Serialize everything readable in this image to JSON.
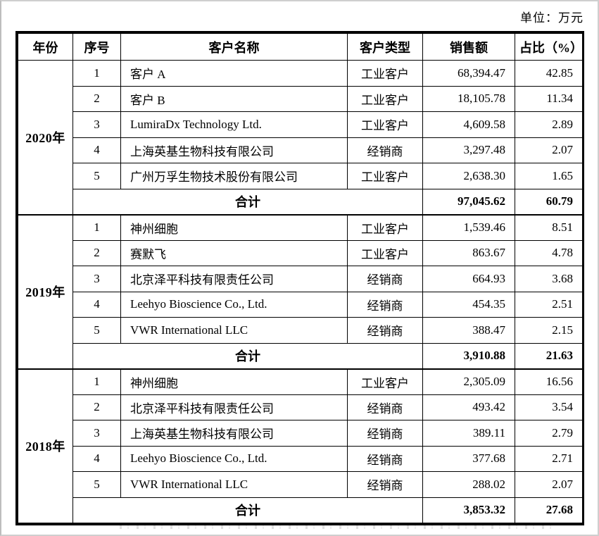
{
  "page": {
    "unit_label": "单位：万元"
  },
  "table": {
    "columns": [
      "年份",
      "序号",
      "客户名称",
      "客户类型",
      "销售额",
      "占比（%）"
    ],
    "total_label": "合计",
    "groups": [
      {
        "year": "2020年",
        "rows": [
          {
            "no": "1",
            "name": "客户 A",
            "type": "工业客户",
            "sales": "68,394.47",
            "pct": "42.85"
          },
          {
            "no": "2",
            "name": "客户 B",
            "type": "工业客户",
            "sales": "18,105.78",
            "pct": "11.34"
          },
          {
            "no": "3",
            "name": "LumiraDx Technology Ltd.",
            "type": "工业客户",
            "sales": "4,609.58",
            "pct": "2.89"
          },
          {
            "no": "4",
            "name": "上海英基生物科技有限公司",
            "type": "经销商",
            "sales": "3,297.48",
            "pct": "2.07"
          },
          {
            "no": "5",
            "name": "广州万孚生物技术股份有限公司",
            "type": "工业客户",
            "sales": "2,638.30",
            "pct": "1.65"
          }
        ],
        "total": {
          "sales": "97,045.62",
          "pct": "60.79"
        }
      },
      {
        "year": "2019年",
        "rows": [
          {
            "no": "1",
            "name": "神州细胞",
            "type": "工业客户",
            "sales": "1,539.46",
            "pct": "8.51"
          },
          {
            "no": "2",
            "name": "赛默飞",
            "type": "工业客户",
            "sales": "863.67",
            "pct": "4.78"
          },
          {
            "no": "3",
            "name": "北京泽平科技有限责任公司",
            "type": "经销商",
            "sales": "664.93",
            "pct": "3.68"
          },
          {
            "no": "4",
            "name": "Leehyo Bioscience Co., Ltd.",
            "type": "经销商",
            "sales": "454.35",
            "pct": "2.51"
          },
          {
            "no": "5",
            "name": "VWR International LLC",
            "type": "经销商",
            "sales": "388.47",
            "pct": "2.15"
          }
        ],
        "total": {
          "sales": "3,910.88",
          "pct": "21.63"
        }
      },
      {
        "year": "2018年",
        "rows": [
          {
            "no": "1",
            "name": "神州细胞",
            "type": "工业客户",
            "sales": "2,305.09",
            "pct": "16.56"
          },
          {
            "no": "2",
            "name": "北京泽平科技有限责任公司",
            "type": "经销商",
            "sales": "493.42",
            "pct": "3.54"
          },
          {
            "no": "3",
            "name": "上海英基生物科技有限公司",
            "type": "经销商",
            "sales": "389.11",
            "pct": "2.79"
          },
          {
            "no": "4",
            "name": "Leehyo Bioscience Co., Ltd.",
            "type": "经销商",
            "sales": "377.68",
            "pct": "2.71"
          },
          {
            "no": "5",
            "name": "VWR International LLC",
            "type": "经销商",
            "sales": "288.02",
            "pct": "2.07"
          }
        ],
        "total": {
          "sales": "3,853.32",
          "pct": "27.68"
        }
      }
    ]
  }
}
